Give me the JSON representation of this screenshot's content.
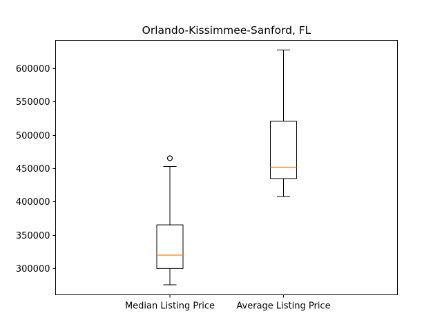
{
  "chart_data": {
    "type": "box",
    "title": "Orlando-Kissimmee-Sanford, FL",
    "xlabel": "",
    "ylabel": "",
    "categories": [
      "Median Listing Price",
      "Average Listing Price"
    ],
    "boxes": [
      {
        "category": "Median Listing Price",
        "whisker_low": 275000,
        "q1": 299500,
        "median": 319500,
        "q3": 365000,
        "whisker_high": 452500,
        "outliers": [
          465000
        ]
      },
      {
        "category": "Average Listing Price",
        "whisker_low": 407500,
        "q1": 434500,
        "median": 451500,
        "q3": 520500,
        "whisker_high": 627500,
        "outliers": []
      }
    ],
    "ylim": [
      260000,
      642000
    ],
    "yticks": [
      300000,
      350000,
      400000,
      450000,
      500000,
      550000,
      600000
    ],
    "grid": false,
    "colors": {
      "box": "#000000",
      "median": "#ff7f0e",
      "outlier": "#000000"
    }
  }
}
